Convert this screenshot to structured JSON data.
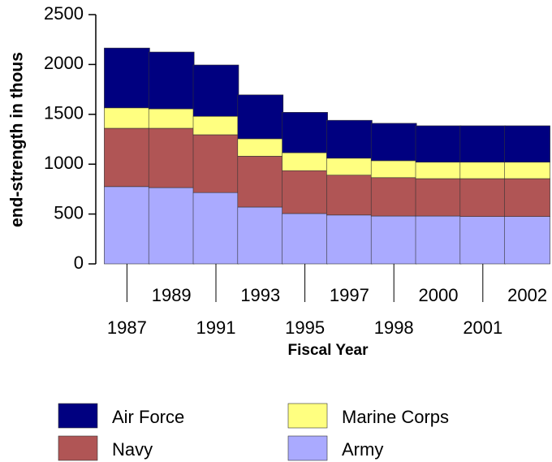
{
  "chart_data": {
    "type": "stacked-bar",
    "y_label": "end-strength in thous",
    "x_label": "Fiscal Year",
    "categories": [
      "1987",
      "1989",
      "1991",
      "1993",
      "1995",
      "1997",
      "1998",
      "2000",
      "2001",
      "2002"
    ],
    "series": [
      {
        "name": "Army",
        "color": "#aaaaff",
        "values": [
          775,
          765,
          715,
          570,
          505,
          490,
          480,
          480,
          475,
          475
        ]
      },
      {
        "name": "Navy",
        "color": "#b05555",
        "values": [
          585,
          595,
          580,
          510,
          430,
          400,
          385,
          375,
          380,
          380
        ]
      },
      {
        "name": "Marine Corps",
        "color": "#ffff80",
        "values": [
          205,
          195,
          185,
          175,
          180,
          170,
          170,
          165,
          165,
          165
        ]
      },
      {
        "name": "Air Force",
        "color": "#000080",
        "values": [
          600,
          570,
          515,
          440,
          405,
          380,
          375,
          365,
          365,
          365
        ]
      }
    ],
    "ylim": [
      0,
      2500
    ],
    "yticks": [
      0,
      500,
      1000,
      1500,
      2000,
      2500
    ]
  }
}
